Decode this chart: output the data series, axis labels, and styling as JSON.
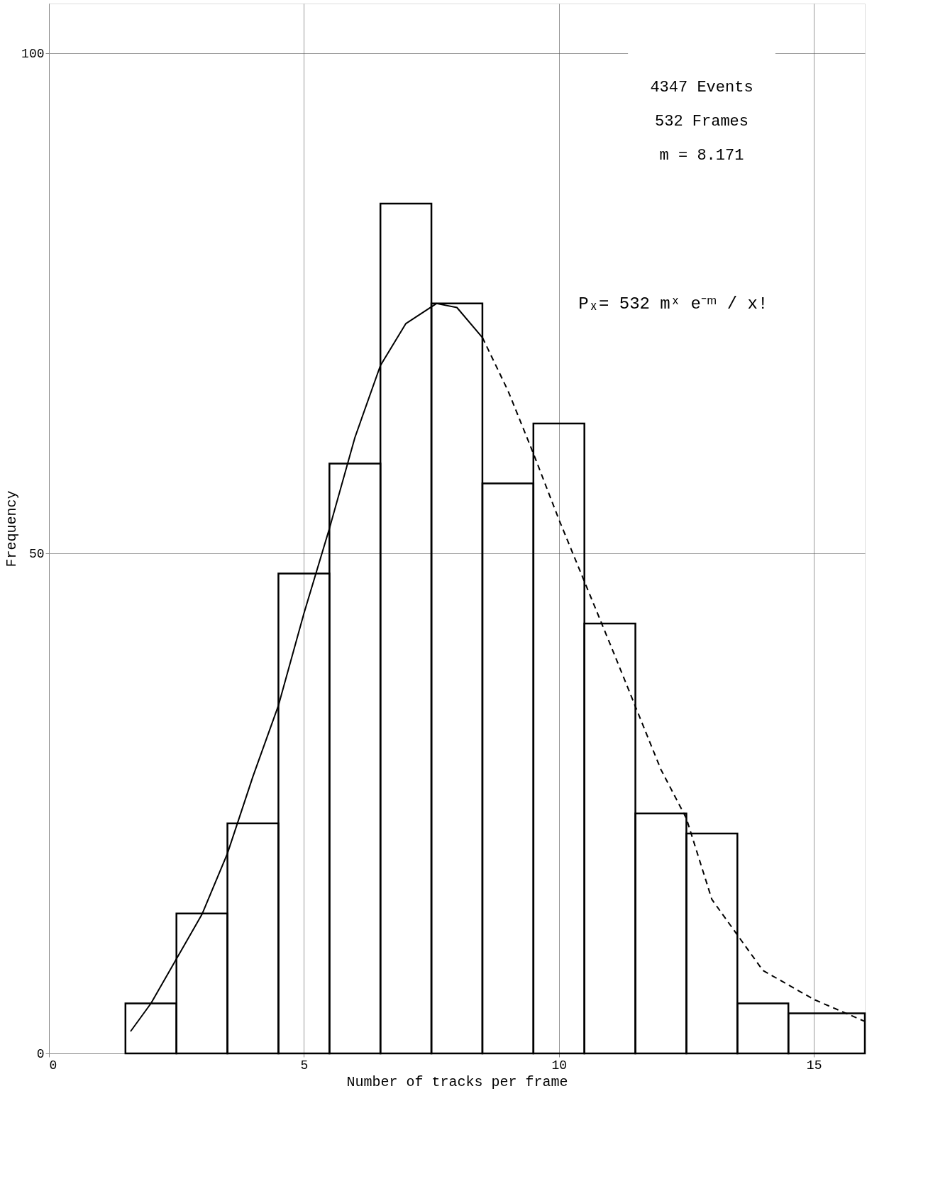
{
  "chart_data": {
    "type": "histogram",
    "xlabel": "Number of tracks per frame",
    "ylabel": "Frequency",
    "bins": [
      1.5,
      2.5,
      3.5,
      4.5,
      5.5,
      6.5,
      7.5,
      8.5,
      9.5,
      10.5,
      11.5,
      12.5,
      13.5,
      14.5,
      16
    ],
    "values": [
      5,
      14,
      23,
      48,
      59,
      85,
      75,
      57,
      63,
      43,
      24,
      22,
      5,
      4
    ],
    "color": "#000000",
    "series": [
      {
        "type": "line",
        "color": "#000000",
        "line_style": "solid",
        "x": [
          1.6,
          2,
          3,
          3.5,
          4,
          4.5,
          5,
          5.5,
          6,
          6.5,
          7,
          7.6,
          8,
          8.5
        ],
        "values": [
          2.2,
          5,
          13.9,
          20,
          27.7,
          34.8,
          44,
          52.5,
          61.6,
          68.8,
          73,
          75,
          74.6,
          71.6
        ]
      },
      {
        "type": "line",
        "color": "#000000",
        "line_style": "dashed",
        "x": [
          8.5,
          9,
          9.5,
          10,
          11,
          12,
          12.5,
          13,
          14,
          15,
          16
        ],
        "values": [
          71.6,
          66.3,
          60,
          53.4,
          41,
          28.4,
          23.5,
          15.4,
          8.3,
          5.4,
          3.2
        ]
      }
    ],
    "xlim": [
      0,
      16
    ],
    "ylim": [
      0,
      105
    ],
    "xticks": [
      0,
      5,
      10,
      15
    ],
    "yticks": [
      0,
      50,
      100
    ],
    "grid": true,
    "legend": false,
    "annotations": [
      "4347 Events",
      "532 Frames",
      "m = 8.171",
      "Pₓ= 532 mˣ e⁻ᵐ / x!"
    ]
  }
}
